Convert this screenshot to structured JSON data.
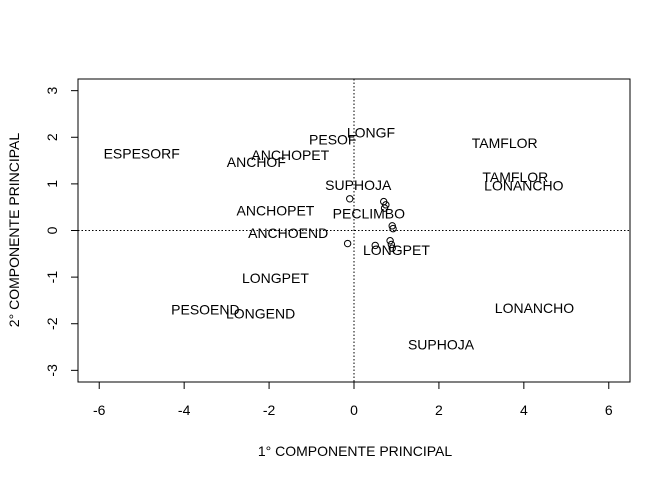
{
  "chart_data": {
    "type": "scatter",
    "title": "",
    "xlabel": "1° COMPONENTE PRINCIPAL",
    "ylabel": "2° COMPONENTE PRINCIPAL",
    "xlim": [
      -6.5,
      6.5
    ],
    "ylim": [
      -3.25,
      3.25
    ],
    "xticks": [
      -6,
      -4,
      -2,
      0,
      2,
      4,
      6
    ],
    "yticks": [
      -3,
      -2,
      -1,
      0,
      1,
      2,
      3
    ],
    "reference_lines": {
      "x": 0,
      "y": 0,
      "style": "dotted"
    },
    "grid": false,
    "legend": "none",
    "points": [
      {
        "x": -0.1,
        "y": 0.68
      },
      {
        "x": 0.7,
        "y": 0.62
      },
      {
        "x": 0.75,
        "y": 0.55
      },
      {
        "x": 0.72,
        "y": 0.48
      },
      {
        "x": 0.9,
        "y": 0.1
      },
      {
        "x": 0.92,
        "y": 0.04
      },
      {
        "x": -0.15,
        "y": -0.28
      },
      {
        "x": 0.5,
        "y": -0.32
      },
      {
        "x": 0.85,
        "y": -0.22
      },
      {
        "x": 0.88,
        "y": -0.3
      },
      {
        "x": 0.9,
        "y": -0.38
      }
    ],
    "labels": [
      {
        "text": "ESPESORF",
        "x": -5.0,
        "y": 1.65
      },
      {
        "text": "ANCHOPET",
        "x": -1.5,
        "y": 1.62
      },
      {
        "text": "ANCHOF",
        "x": -2.3,
        "y": 1.47
      },
      {
        "text": "PESOF",
        "x": -0.5,
        "y": 1.95
      },
      {
        "text": "LONGF",
        "x": 0.4,
        "y": 2.1
      },
      {
        "text": "TAMFLOR",
        "x": 3.55,
        "y": 1.88
      },
      {
        "text": "TAMFLOR",
        "x": 3.8,
        "y": 1.15
      },
      {
        "text": "LONANCHO",
        "x": 4.0,
        "y": 0.97
      },
      {
        "text": "SUPHOJA",
        "x": 0.1,
        "y": 0.98
      },
      {
        "text": "ANCHOPET",
        "x": -1.85,
        "y": 0.43
      },
      {
        "text": "PECLIMBO",
        "x": 0.35,
        "y": 0.37
      },
      {
        "text": "ANCHOEND",
        "x": -1.55,
        "y": -0.05
      },
      {
        "text": "LONGPET",
        "x": 1.0,
        "y": -0.42
      },
      {
        "text": "LONGPET",
        "x": -1.85,
        "y": -1.02
      },
      {
        "text": "PESOEND",
        "x": -3.5,
        "y": -1.7
      },
      {
        "text": "LONGEND",
        "x": -2.2,
        "y": -1.78
      },
      {
        "text": "LONANCHO",
        "x": 4.25,
        "y": -1.66
      },
      {
        "text": "SUPHOJA",
        "x": 2.05,
        "y": -2.45
      }
    ]
  }
}
